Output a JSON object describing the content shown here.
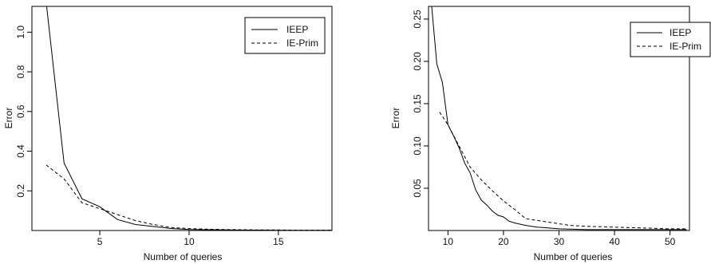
{
  "chart_data": [
    {
      "type": "line",
      "xlabel": "Number of queries",
      "ylabel": "Error",
      "xlim": [
        1.2,
        18.0
      ],
      "ylim": [
        0.0,
        1.13
      ],
      "xticks": [
        5,
        10,
        15
      ],
      "xtick_labels": [
        "5",
        "10",
        "15"
      ],
      "yticks": [
        0.2,
        0.4,
        0.6,
        0.8,
        1.0
      ],
      "ytick_labels": [
        "0.2",
        "0.4",
        "0.6",
        "0.8",
        "1.0"
      ],
      "grid": false,
      "legend_position": "top-right",
      "series": [
        {
          "name": "IEEP",
          "line_style": "solid",
          "color": "#000000",
          "x": [
            2,
            3,
            4,
            5,
            6,
            7,
            8,
            9,
            10,
            11,
            12,
            13,
            14,
            15,
            16,
            17,
            18
          ],
          "y": [
            1.15,
            0.34,
            0.16,
            0.12,
            0.055,
            0.03,
            0.02,
            0.01,
            0.005,
            0.004,
            0.003,
            0.002,
            0.002,
            0.001,
            0.001,
            0.001,
            0.001
          ]
        },
        {
          "name": "IE-Prim",
          "line_style": "dashed",
          "color": "#000000",
          "x": [
            2,
            3,
            4,
            5,
            6,
            7,
            8,
            9,
            10,
            11,
            12,
            13,
            14,
            15,
            16,
            17,
            18
          ],
          "y": [
            0.33,
            0.26,
            0.14,
            0.11,
            0.08,
            0.05,
            0.03,
            0.015,
            0.01,
            0.007,
            0.005,
            0.004,
            0.003,
            0.003,
            0.002,
            0.002,
            0.002
          ]
        }
      ]
    },
    {
      "type": "line",
      "xlabel": "Number of queries",
      "ylabel": "Error",
      "xlim": [
        6.5,
        53.5
      ],
      "ylim": [
        0.0,
        0.265
      ],
      "xticks": [
        10,
        20,
        30,
        40,
        50
      ],
      "xtick_labels": [
        "10",
        "20",
        "30",
        "40",
        "50"
      ],
      "yticks": [
        0.05,
        0.1,
        0.15,
        0.2,
        0.25
      ],
      "ytick_labels": [
        "0.05",
        "0.10",
        "0.15",
        "0.20",
        "0.25"
      ],
      "grid": false,
      "legend_position": "top-right",
      "series": [
        {
          "name": "IEEP",
          "line_style": "solid",
          "color": "#000000",
          "x": [
            7,
            8,
            9,
            10,
            11,
            12,
            13,
            14,
            15,
            16,
            17,
            18,
            19,
            20,
            21,
            22,
            24,
            26,
            28,
            30,
            35,
            40,
            45,
            50,
            53
          ],
          "y": [
            0.27,
            0.197,
            0.175,
            0.125,
            0.112,
            0.098,
            0.08,
            0.068,
            0.048,
            0.036,
            0.03,
            0.023,
            0.018,
            0.016,
            0.011,
            0.009,
            0.006,
            0.004,
            0.003,
            0.002,
            0.001,
            0.001,
            0.001,
            0.001,
            0.001
          ]
        },
        {
          "name": "IE-Prim",
          "line_style": "dashed",
          "color": "#000000",
          "x": [
            8.5,
            10,
            12,
            14,
            16,
            18,
            20,
            22,
            24,
            26,
            28,
            30,
            32,
            35,
            40,
            45,
            50,
            53
          ],
          "y": [
            0.14,
            0.125,
            0.1,
            0.075,
            0.06,
            0.047,
            0.035,
            0.025,
            0.014,
            0.012,
            0.01,
            0.008,
            0.006,
            0.005,
            0.004,
            0.003,
            0.002,
            0.002
          ]
        }
      ]
    }
  ]
}
